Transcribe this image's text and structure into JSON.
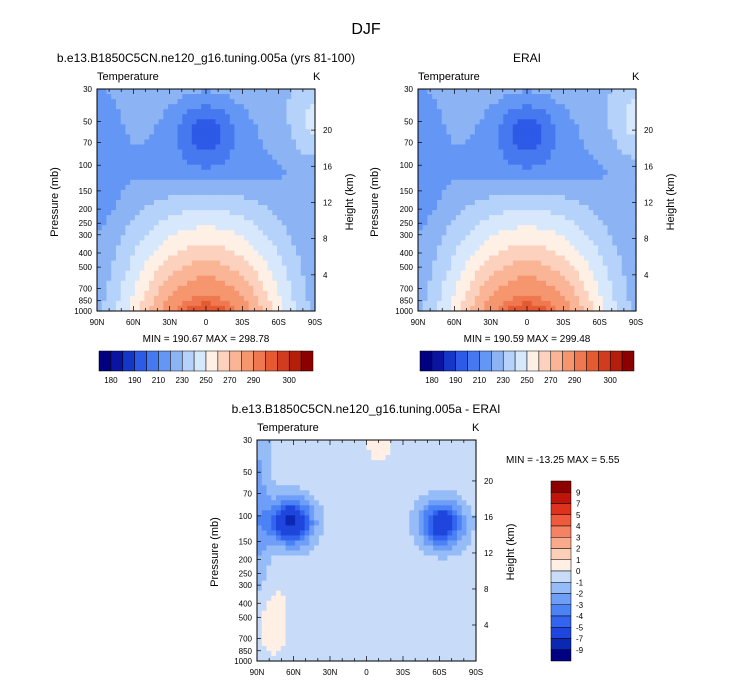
{
  "figure": {
    "title": "DJF"
  },
  "colors": {
    "abs": [
      "#000080",
      "#0a14a0",
      "#1437c8",
      "#2d5ae6",
      "#4678f0",
      "#6496f5",
      "#8cb4f5",
      "#b4d2fa",
      "#d7e8fc",
      "#fff0e6",
      "#fcd2be",
      "#fab496",
      "#f5966e",
      "#f07850",
      "#e65a32",
      "#d23c1e",
      "#b41e0a",
      "#8c0000"
    ],
    "diff": [
      "#000080",
      "#0a28b4",
      "#1e46dc",
      "#3264f0",
      "#4b82f5",
      "#6e9ef7",
      "#96bcf8",
      "#c8dcfa",
      "#ffefe4",
      "#fcd0b8",
      "#faaa8c",
      "#f58264",
      "#f05a3c",
      "#dc321e",
      "#be140a",
      "#8c0000"
    ]
  },
  "panels": [
    {
      "title": "b.e13.B1850C5CN.ne120_g16.tuning.005a (yrs 81-100)",
      "left_label": "Temperature",
      "right_label": "K",
      "stats": "MIN = 190.67  MAX = 298.78",
      "ylabel_left": "Pressure (mb)",
      "ylabel_right": "Height (km)"
    },
    {
      "title": "ERAI",
      "left_label": "Temperature",
      "right_label": "K",
      "stats": "MIN = 190.59  MAX = 299.48",
      "ylabel_left": "Pressure (mb)",
      "ylabel_right": "Height (km)"
    },
    {
      "title": "b.e13.B1850C5CN.ne120_g16.tuning.005a - ERAI",
      "left_label": "Temperature",
      "right_label": "K",
      "stats": "MIN = -13.25  MAX =   5.55",
      "ylabel_left": "Pressure (mb)",
      "ylabel_right": "Height (km)"
    }
  ],
  "abs_colorbar_labels": [
    "180",
    "190",
    "210",
    "230",
    "250",
    "270",
    "290",
    "300"
  ],
  "diff_colorbar_labels": [
    "9",
    "7",
    "5",
    "4",
    "3",
    "2",
    "1",
    "0",
    "-1",
    "-2",
    "-3",
    "-4",
    "-5",
    "-7",
    "-9"
  ],
  "chart_data": [
    {
      "type": "heatmap",
      "title": "b.e13.B1850C5CN.ne120_g16.tuning.005a (yrs 81-100)",
      "xlabel": "",
      "ylabel": "Pressure (mb)",
      "ylabel_right": "Height (km)",
      "x": [
        "90N",
        "60N",
        "30N",
        "0",
        "30S",
        "60S",
        "90S"
      ],
      "x_values": [
        90,
        60,
        30,
        0,
        -30,
        -60,
        -90
      ],
      "y_ticks": [
        30,
        50,
        70,
        100,
        150,
        200,
        250,
        300,
        400,
        500,
        700,
        850,
        1000
      ],
      "y_right_ticks": [
        20,
        16,
        12,
        8,
        4
      ],
      "ylim": [
        1000,
        30
      ],
      "y_log": true,
      "units": "K",
      "min": 190.67,
      "max": 298.78,
      "levels": [
        180,
        185,
        190,
        200,
        210,
        220,
        230,
        240,
        250,
        260,
        270,
        280,
        290,
        295,
        300
      ]
    },
    {
      "type": "heatmap",
      "title": "ERAI",
      "xlabel": "",
      "ylabel": "Pressure (mb)",
      "ylabel_right": "Height (km)",
      "x": [
        "90N",
        "60N",
        "30N",
        "0",
        "30S",
        "60S",
        "90S"
      ],
      "x_values": [
        90,
        60,
        30,
        0,
        -30,
        -60,
        -90
      ],
      "y_ticks": [
        30,
        50,
        70,
        100,
        150,
        200,
        250,
        300,
        400,
        500,
        700,
        850,
        1000
      ],
      "y_right_ticks": [
        20,
        16,
        12,
        8,
        4
      ],
      "ylim": [
        1000,
        30
      ],
      "y_log": true,
      "units": "K",
      "min": 190.59,
      "max": 299.48,
      "levels": [
        180,
        185,
        190,
        200,
        210,
        220,
        230,
        240,
        250,
        260,
        270,
        280,
        290,
        295,
        300
      ]
    },
    {
      "type": "heatmap",
      "title": "b.e13.B1850C5CN.ne120_g16.tuning.005a - ERAI",
      "xlabel": "",
      "ylabel": "Pressure (mb)",
      "ylabel_right": "Height (km)",
      "x": [
        "90N",
        "60N",
        "30N",
        "0",
        "30S",
        "60S",
        "90S"
      ],
      "x_values": [
        90,
        60,
        30,
        0,
        -30,
        -60,
        -90
      ],
      "y_ticks": [
        30,
        50,
        70,
        100,
        150,
        200,
        250,
        300,
        400,
        500,
        700,
        850,
        1000
      ],
      "y_right_ticks": [
        20,
        16,
        12,
        8,
        4
      ],
      "ylim": [
        1000,
        30
      ],
      "y_log": true,
      "units": "K",
      "min": -13.25,
      "max": 5.55,
      "levels": [
        -9,
        -7,
        -5,
        -4,
        -3,
        -2,
        -1,
        0,
        1,
        2,
        3,
        4,
        5,
        7,
        9
      ]
    }
  ]
}
